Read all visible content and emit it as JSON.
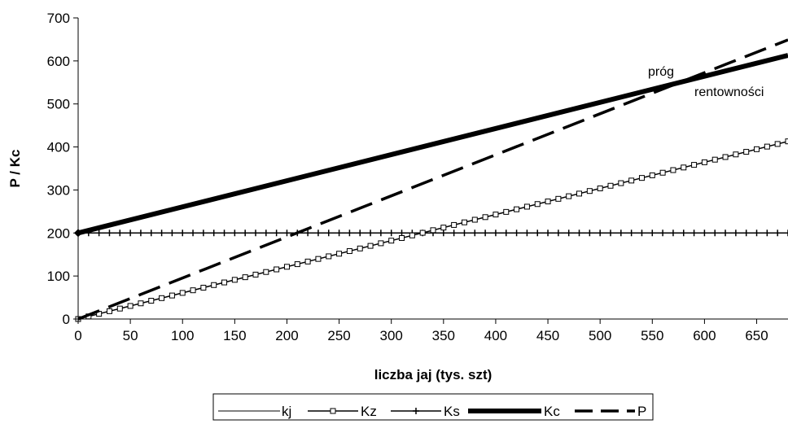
{
  "chart_data": {
    "type": "line",
    "xlabel": "liczba jaj (tys. szt)",
    "ylabel": "P / Kc",
    "xlim": [
      0,
      680
    ],
    "ylim": [
      0,
      700
    ],
    "x_ticks": [
      0,
      50,
      100,
      150,
      200,
      250,
      300,
      350,
      400,
      450,
      500,
      550,
      600,
      650
    ],
    "y_ticks": [
      0,
      100,
      200,
      300,
      400,
      500,
      600,
      700
    ],
    "grid": false,
    "legend_position": "bottom",
    "annotations": [
      "próg",
      "rentowności"
    ],
    "series": [
      {
        "name": "kj",
        "style": "thin",
        "x": [
          0,
          680
        ],
        "y": [
          0,
          0
        ]
      },
      {
        "name": "Kz",
        "style": "square-markers",
        "x": [
          0,
          680
        ],
        "y": [
          0,
          413
        ]
      },
      {
        "name": "Ks",
        "style": "plus-markers",
        "x": [
          0,
          680
        ],
        "y": [
          200,
          200
        ]
      },
      {
        "name": "Kc",
        "style": "thick",
        "x": [
          0,
          680
        ],
        "y": [
          200,
          613
        ]
      },
      {
        "name": "P",
        "style": "dashed",
        "x": [
          0,
          680
        ],
        "y": [
          0,
          649
        ]
      }
    ]
  }
}
